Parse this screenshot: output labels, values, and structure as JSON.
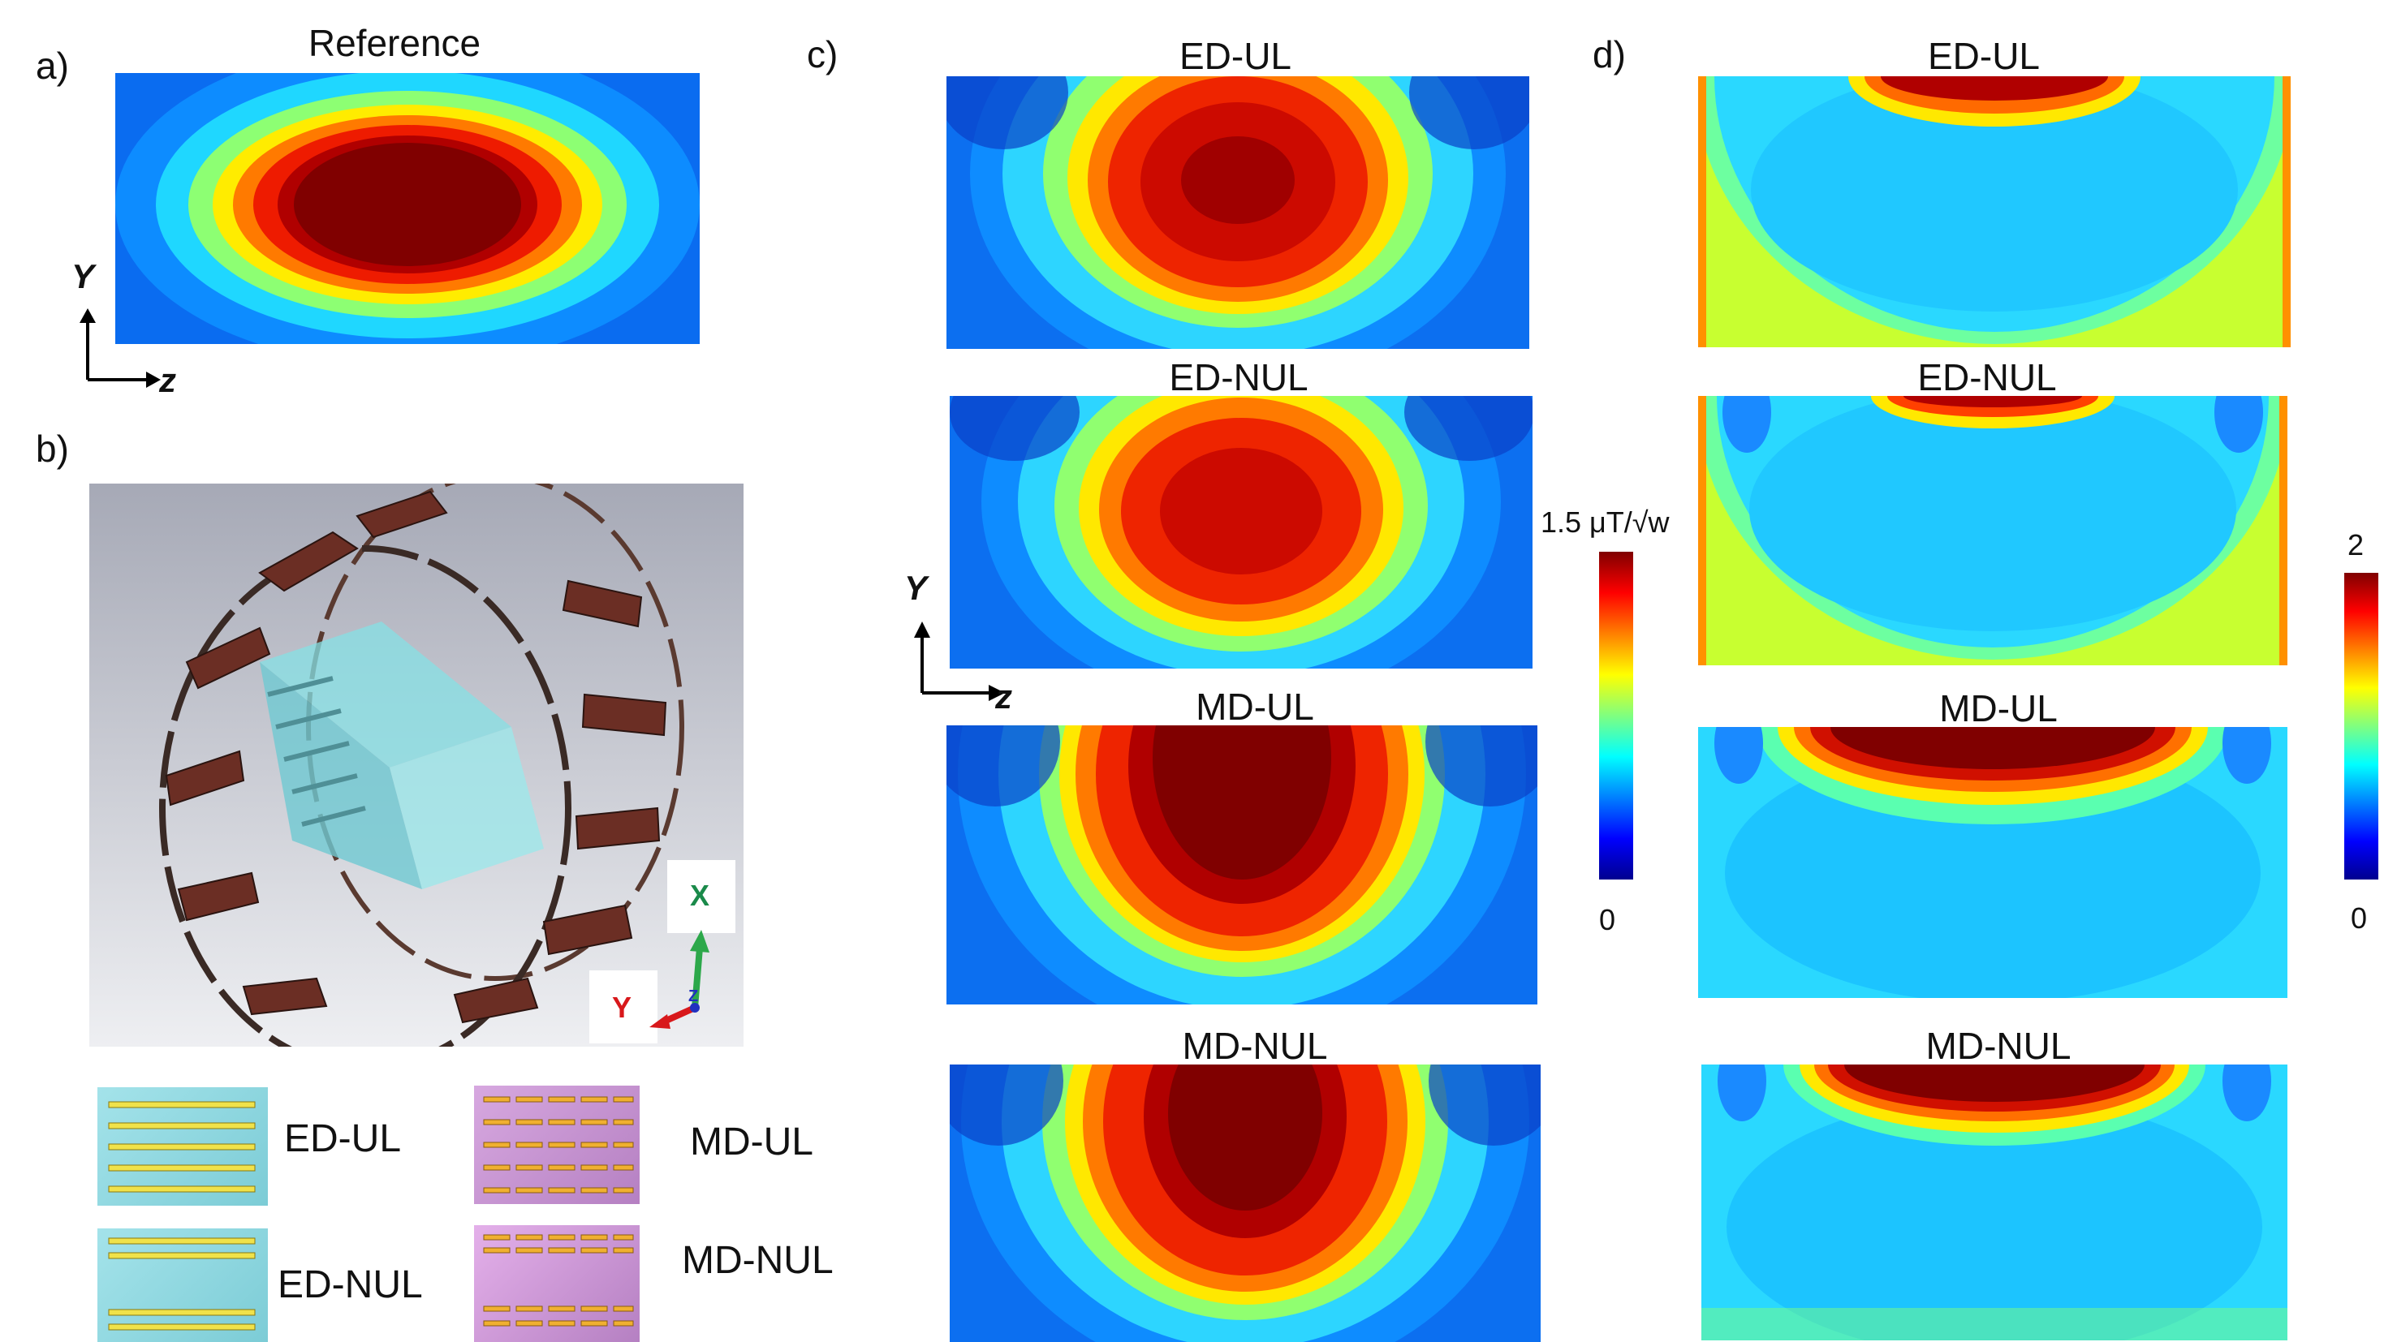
{
  "panel_labels": {
    "a": "a)",
    "b": "b)",
    "c": "c)",
    "d": "d)"
  },
  "panel_a": {
    "title": "Reference",
    "axis_y": "Y",
    "axis_z": "z"
  },
  "panel_c": {
    "titles": [
      "ED-UL",
      "ED-NUL",
      "MD-UL",
      "MD-NUL"
    ],
    "axis_y": "Y",
    "axis_z": "z",
    "colorbar": {
      "max_label": "1.5 μT/√w",
      "min_label": "0"
    }
  },
  "panel_d": {
    "titles": [
      "ED-UL",
      "ED-NUL",
      "MD-UL",
      "MD-NUL"
    ],
    "colorbar": {
      "max_label": "2",
      "min_label": "0"
    }
  },
  "panel_b": {
    "triad": {
      "x": "X",
      "y": "Y",
      "z": "Z"
    },
    "legend": [
      {
        "label": "ED-UL",
        "color": "#8fd6e0"
      },
      {
        "label": "ED-NUL",
        "color": "#8fd6e0"
      },
      {
        "label": "MD-UL",
        "color": "#c79ad2"
      },
      {
        "label": "MD-NUL",
        "color": "#c79ad2"
      }
    ]
  },
  "colors": {
    "coil_strip": "#6b2e24",
    "phantom": "#7fd3d8",
    "jet_max": "#800000",
    "jet_min": "#00008f"
  }
}
